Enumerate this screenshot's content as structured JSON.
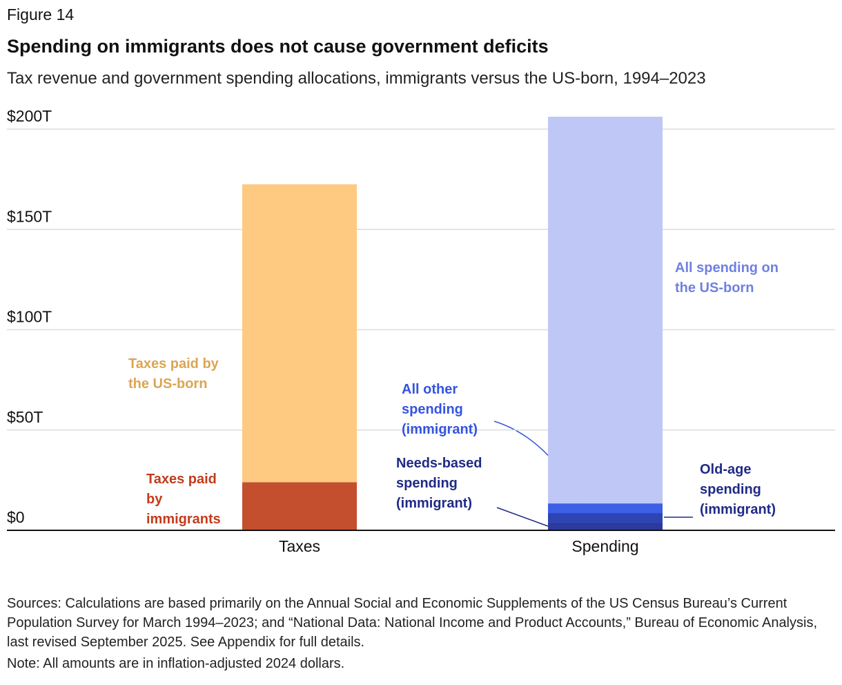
{
  "chart_data": {
    "type": "stacked_bar",
    "figure_label": "Figure 14",
    "title": "Spending on immigrants does not cause government deficits",
    "subtitle": "Tax revenue and government spending allocations, immigrants versus the US-born, 1994–2023",
    "categories": [
      "Taxes",
      "Spending"
    ],
    "series": [
      {
        "name": "Taxes paid by immigrants",
        "color": "#c44f2e",
        "label_color": "#c23b1c",
        "values": [
          24,
          null
        ]
      },
      {
        "name": "Taxes paid by the US-born",
        "color": "#fec980",
        "label_color": "#dba552",
        "values": [
          148.5,
          null
        ]
      },
      {
        "name": "Old-age spending (immigrant)",
        "color": "#2a3a9e",
        "label_color": "#1f2a86",
        "values": [
          null,
          3.8
        ]
      },
      {
        "name": "Needs-based spending (immigrant)",
        "color": "#2e44b4",
        "label_color": "#1f2a86",
        "values": [
          null,
          4.8
        ]
      },
      {
        "name": "All other spending (immigrant)",
        "color": "#3d5fe6",
        "label_color": "#3454e0",
        "values": [
          null,
          4.8
        ]
      },
      {
        "name": "All spending on the US-born",
        "color": "#bfc7f6",
        "label_color": "#6f80e2",
        "values": [
          null,
          192.8
        ]
      }
    ],
    "ylim": [
      0,
      210
    ],
    "yticks": [
      {
        "value": 0,
        "label": "$0"
      },
      {
        "value": 50,
        "label": "$50T"
      },
      {
        "value": 100,
        "label": "$100T"
      },
      {
        "value": 150,
        "label": "$150T"
      },
      {
        "value": 200,
        "label": "$200T"
      }
    ],
    "grid": true,
    "sources": "Sources: Calculations are based primarily on the Annual Social and Economic Supplements of the US Census Bureau’s Current Population Survey for March 1994–2023; and “National Data: National Income and Product Accounts,” Bureau of Economic Analysis, last revised September 2025. See Appendix for full details.",
    "note": "Note: All amounts are in inflation-adjusted 2024 dollars."
  }
}
